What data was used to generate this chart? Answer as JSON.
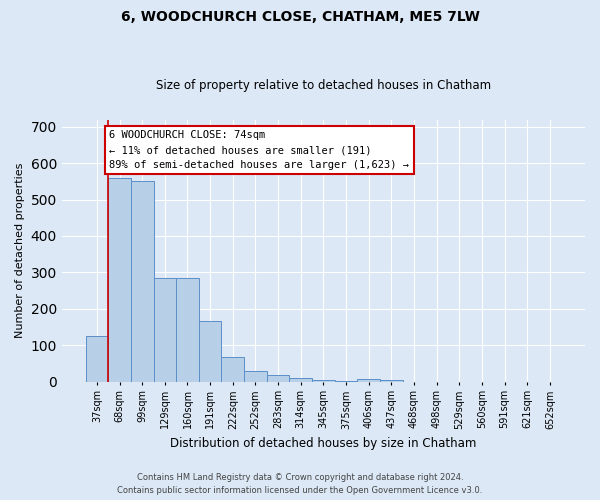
{
  "title": "6, WOODCHURCH CLOSE, CHATHAM, ME5 7LW",
  "subtitle": "Size of property relative to detached houses in Chatham",
  "xlabel": "Distribution of detached houses by size in Chatham",
  "ylabel": "Number of detached properties",
  "categories": [
    "37sqm",
    "68sqm",
    "99sqm",
    "129sqm",
    "160sqm",
    "191sqm",
    "222sqm",
    "252sqm",
    "283sqm",
    "314sqm",
    "345sqm",
    "375sqm",
    "406sqm",
    "437sqm",
    "468sqm",
    "498sqm",
    "529sqm",
    "560sqm",
    "591sqm",
    "621sqm",
    "652sqm"
  ],
  "values": [
    125,
    558,
    551,
    284,
    284,
    165,
    68,
    30,
    18,
    9,
    5,
    2,
    8,
    5,
    0,
    0,
    0,
    0,
    0,
    0,
    0
  ],
  "bar_color": "#b8cfe8",
  "bar_edge_color": "#5b8fc9",
  "annotation_text": "6 WOODCHURCH CLOSE: 74sqm\n← 11% of detached houses are smaller (191)\n89% of semi-detached houses are larger (1,623) →",
  "annotation_box_color": "#ffffff",
  "annotation_box_edge_color": "#cc0000",
  "red_line_color": "#cc0000",
  "bg_color": "#dce8f5",
  "plot_bg_color": "#dce8f5",
  "grid_color": "#ffffff",
  "footer_line1": "Contains HM Land Registry data © Crown copyright and database right 2024.",
  "footer_line2": "Contains public sector information licensed under the Open Government Licence v3.0.",
  "ylim": [
    0,
    720
  ],
  "yticks": [
    0,
    100,
    200,
    300,
    400,
    500,
    600,
    700
  ]
}
